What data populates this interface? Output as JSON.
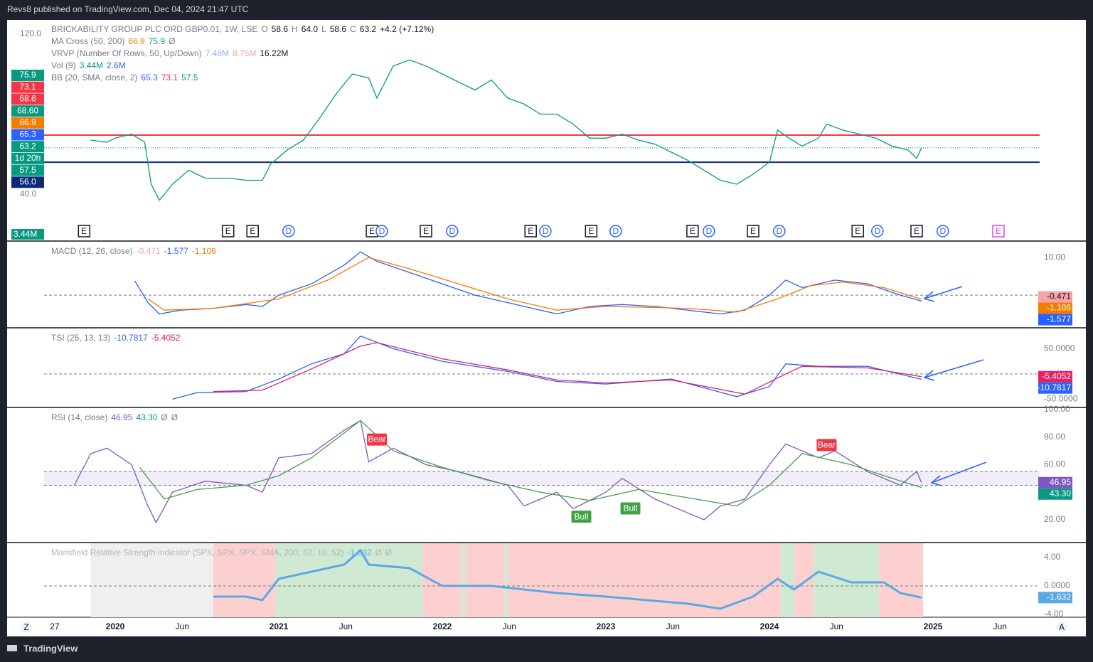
{
  "header": "Revs8 published on TradingView.com, Dec 04, 2024 21:47 UTC",
  "footer": "TradingView",
  "legends": [
    [
      {
        "text": "BRICKABILITY GROUP PLC ORD GBP0.01, 1W, LSE",
        "color": "#787b86"
      },
      {
        "text": "O",
        "color": "#787b86"
      },
      {
        "text": "58.6",
        "color": "#131722"
      },
      {
        "text": "H",
        "color": "#787b86"
      },
      {
        "text": "64.0",
        "color": "#131722"
      },
      {
        "text": "L",
        "color": "#787b86"
      },
      {
        "text": "58.6",
        "color": "#131722"
      },
      {
        "text": "C",
        "color": "#787b86"
      },
      {
        "text": "63.2",
        "color": "#131722"
      },
      {
        "text": "+4.2 (+7.12%)",
        "color": "#131722"
      }
    ],
    [
      {
        "text": "MA Cross (50, 200)",
        "color": "#787b86"
      },
      {
        "text": "66.9",
        "color": "#f57c00"
      },
      {
        "text": "75.9",
        "color": "#089981"
      },
      {
        "text": "Ø",
        "color": "#787b86"
      }
    ],
    [
      {
        "text": "VRVP (Number Of Rows, 50, Up/Down)",
        "color": "#787b86"
      },
      {
        "text": "7.48M",
        "color": "#90b4f5"
      },
      {
        "text": "8.75M",
        "color": "#f5a3a8"
      },
      {
        "text": "16.22M",
        "color": "#131722"
      }
    ],
    [
      {
        "text": "Vol (9)",
        "color": "#787b86"
      },
      {
        "text": "3.44M",
        "color": "#089981"
      },
      {
        "text": "2.6M",
        "color": "#2962ff"
      }
    ],
    [
      {
        "text": "BB (20, SMA, close, 2)",
        "color": "#787b86"
      },
      {
        "text": "65.3",
        "color": "#2962ff"
      },
      {
        "text": "73.1",
        "color": "#f23645"
      },
      {
        "text": "57.5",
        "color": "#089981"
      }
    ]
  ],
  "chart_data": [
    {
      "type": "line",
      "name": "price",
      "ylim": [
        17,
        127
      ],
      "yticks": [
        {
          "value": 120,
          "label": "120.0"
        },
        {
          "value": 40,
          "label": "40.0"
        }
      ],
      "x": [
        2019.85,
        2019.95,
        2020.0,
        2020.1,
        2020.18,
        2020.22,
        2020.27,
        2020.35,
        2020.45,
        2020.55,
        2020.7,
        2020.8,
        2020.9,
        2020.95,
        2021.05,
        2021.15,
        2021.25,
        2021.35,
        2021.45,
        2021.55,
        2021.6,
        2021.7,
        2021.8,
        2021.9,
        2022.0,
        2022.1,
        2022.2,
        2022.3,
        2022.4,
        2022.5,
        2022.6,
        2022.7,
        2022.8,
        2022.9,
        2023.0,
        2023.1,
        2023.2,
        2023.3,
        2023.4,
        2023.5,
        2023.6,
        2023.7,
        2023.8,
        2023.9,
        2024.0,
        2024.05,
        2024.12,
        2024.2,
        2024.3,
        2024.35,
        2024.45,
        2024.55,
        2024.65,
        2024.75,
        2024.85,
        2024.9,
        2024.93
      ],
      "series": [
        {
          "name": "close",
          "color": "#089981",
          "values": [
            67,
            66,
            68,
            70,
            66,
            45,
            37,
            45,
            52,
            48,
            48,
            47,
            47,
            55,
            62,
            67,
            78,
            90,
            100,
            98,
            88,
            104,
            107,
            104,
            100,
            96,
            92,
            97,
            88,
            85,
            80,
            80,
            75,
            68,
            68,
            70,
            67,
            65,
            61,
            57,
            52,
            47,
            45,
            50,
            56,
            72,
            68,
            64,
            68,
            75,
            72,
            70,
            68,
            64,
            62,
            58,
            63.2
          ]
        }
      ],
      "hlines": [
        {
          "value": 69.5,
          "color": "#f23645"
        },
        {
          "value": 56,
          "color": "#0d2a7a"
        }
      ],
      "price_labels": [
        {
          "value": 75.9,
          "color": "#089981"
        },
        {
          "value": 73.1,
          "color": "#f23645"
        },
        {
          "value": 68.6,
          "color": "#f23645"
        },
        {
          "value": 68.6,
          "label": "68.60",
          "color": "#089981"
        },
        {
          "value": 66.9,
          "color": "#f57c00"
        },
        {
          "value": 65.3,
          "color": "#2962ff"
        },
        {
          "value": 63.2,
          "color": "#089981"
        },
        {
          "value": null,
          "label": "1d 20h",
          "color": "#089981"
        },
        {
          "value": 57.5,
          "color": "#089981"
        },
        {
          "value": 56,
          "label": "56.0",
          "color": "#0d2a7a"
        }
      ],
      "volume_label": "3.44M",
      "events": [
        {
          "text": "E",
          "x": 2019.81
        },
        {
          "text": "E",
          "x": 2020.69
        },
        {
          "text": "E",
          "x": 2020.84
        },
        {
          "text": "D",
          "x": 2021.06
        },
        {
          "text": "E",
          "x": 2021.57
        },
        {
          "text": "D",
          "x": 2021.63
        },
        {
          "text": "E",
          "x": 2021.9
        },
        {
          "text": "D",
          "x": 2022.06
        },
        {
          "text": "E",
          "x": 2022.54
        },
        {
          "text": "D",
          "x": 2022.63
        },
        {
          "text": "E",
          "x": 2022.91
        },
        {
          "text": "D",
          "x": 2023.06
        },
        {
          "text": "E",
          "x": 2023.53
        },
        {
          "text": "D",
          "x": 2023.63
        },
        {
          "text": "E",
          "x": 2023.9
        },
        {
          "text": "D",
          "x": 2024.06
        },
        {
          "text": "E",
          "x": 2024.54
        },
        {
          "text": "D",
          "x": 2024.66
        },
        {
          "text": "E",
          "x": 2024.9
        },
        {
          "text": "D",
          "x": 2025.06
        },
        {
          "text": "E",
          "x": 2025.4,
          "color": "#e040fb"
        }
      ]
    },
    {
      "type": "line",
      "name": "macd",
      "title": [
        {
          "text": "MACD (12, 26, close)",
          "color": "#787b86"
        },
        {
          "text": "-0.471",
          "color": "#f5a3a8"
        },
        {
          "text": "-1.577",
          "color": "#2962ff"
        },
        {
          "text": "-1.106",
          "color": "#f57c00"
        }
      ],
      "ylim": [
        -8.5,
        14.2
      ],
      "yticks": [
        {
          "value": 10,
          "label": "10.00"
        }
      ],
      "zero": 0,
      "series": [
        {
          "name": "MACD",
          "color": "#2962ff",
          "x": [
            2020.12,
            2020.2,
            2020.27,
            2020.4,
            2020.6,
            2020.8,
            2020.9,
            2021.0,
            2021.2,
            2021.4,
            2021.5,
            2021.6,
            2021.8,
            2022.0,
            2022.2,
            2022.4,
            2022.6,
            2022.7,
            2022.9,
            2023.1,
            2023.3,
            2023.5,
            2023.7,
            2023.85,
            2024.0,
            2024.1,
            2024.2,
            2024.4,
            2024.6,
            2024.8,
            2024.93
          ],
          "values": [
            3.8,
            -2,
            -5,
            -4,
            -3.5,
            -2.5,
            -3,
            0,
            3,
            8,
            11.5,
            9,
            6,
            3,
            0,
            -2,
            -4,
            -5,
            -3,
            -2.5,
            -3,
            -4,
            -5,
            -4,
            0,
            4,
            2,
            4,
            3,
            0,
            -1.577
          ]
        },
        {
          "name": "Signal",
          "color": "#f57c00",
          "x": [
            2020.2,
            2020.3,
            2020.6,
            2021.0,
            2021.3,
            2021.55,
            2021.8,
            2022.1,
            2022.4,
            2022.7,
            2023.0,
            2023.5,
            2023.8,
            2024.05,
            2024.25,
            2024.45,
            2024.7,
            2024.93
          ],
          "values": [
            -1,
            -4,
            -3.5,
            -1,
            4,
            10,
            7,
            3,
            -1,
            -4,
            -3,
            -3.5,
            -4.5,
            -1,
            2.5,
            3.5,
            2,
            -1.106
          ]
        }
      ],
      "price_labels": [
        {
          "value": -0.471,
          "color": "#f5a3a8",
          "text_color": "#131722"
        },
        {
          "value": -1.106,
          "color": "#f57c00"
        },
        {
          "value": -1.577,
          "color": "#2962ff"
        }
      ]
    },
    {
      "type": "line",
      "name": "tsi",
      "title": [
        {
          "text": "TSI (25, 13, 13)",
          "color": "#787b86"
        },
        {
          "text": "-10.7817",
          "color": "#2962ff"
        },
        {
          "text": "-5.4052",
          "color": "#e91e63"
        }
      ],
      "ylim": [
        -65,
        90
      ],
      "yticks": [
        {
          "value": 50,
          "label": "50.0000"
        },
        {
          "value": -50,
          "label": "-50.0000"
        }
      ],
      "zero": 0,
      "series": [
        {
          "name": "TSI",
          "color": "#2962ff",
          "x": [
            2020.35,
            2020.5,
            2020.8,
            2021.0,
            2021.2,
            2021.4,
            2021.5,
            2021.7,
            2022.0,
            2022.4,
            2022.7,
            2023.0,
            2023.4,
            2023.8,
            2024.0,
            2024.1,
            2024.3,
            2024.6,
            2024.93
          ],
          "values": [
            -50,
            -37,
            -35,
            -10,
            20,
            40,
            75,
            50,
            25,
            5,
            -15,
            -20,
            -10,
            -45,
            -25,
            20,
            15,
            15,
            -10.7817
          ]
        },
        {
          "name": "Signal",
          "color": "#e91e63",
          "x": [
            2020.6,
            2020.9,
            2021.2,
            2021.5,
            2021.6,
            2022.0,
            2022.4,
            2022.7,
            2023.0,
            2023.4,
            2023.85,
            2024.1,
            2024.2,
            2024.6,
            2024.93
          ],
          "values": [
            -35,
            -32,
            10,
            55,
            62,
            30,
            8,
            -12,
            -18,
            -12,
            -40,
            0,
            15,
            12,
            -5.4052
          ]
        }
      ],
      "price_labels": [
        {
          "value": -5.4052,
          "color": "#e91e63"
        },
        {
          "value": -10.7817,
          "color": "#2962ff"
        }
      ]
    },
    {
      "type": "line",
      "name": "rsi",
      "title": [
        {
          "text": "RSI (14, close)",
          "color": "#787b86"
        },
        {
          "text": "46.95",
          "color": "#7e57c2"
        },
        {
          "text": "43.30",
          "color": "#089981"
        },
        {
          "text": "Ø",
          "color": "#787b86"
        },
        {
          "text": "Ø",
          "color": "#787b86"
        }
      ],
      "ylim": [
        4,
        101
      ],
      "yticks": [
        {
          "value": 100,
          "label": "100.00"
        },
        {
          "value": 80,
          "label": "80.00"
        },
        {
          "value": 60,
          "label": "60.00"
        },
        {
          "value": 20,
          "label": "20.00"
        }
      ],
      "band": [
        45,
        55
      ],
      "series": [
        {
          "name": "RSI",
          "color": "#7e57c2",
          "x": [
            2019.75,
            2019.85,
            2019.95,
            2020.1,
            2020.2,
            2020.25,
            2020.35,
            2020.55,
            2020.8,
            2020.9,
            2021.0,
            2021.2,
            2021.4,
            2021.5,
            2021.55,
            2021.7,
            2021.9,
            2022.1,
            2022.4,
            2022.5,
            2022.7,
            2022.8,
            2023.0,
            2023.1,
            2023.3,
            2023.5,
            2023.6,
            2023.7,
            2023.85,
            2024.0,
            2024.1,
            2024.3,
            2024.4,
            2024.6,
            2024.8,
            2024.9,
            2024.93
          ],
          "values": [
            45,
            68,
            72,
            60,
            30,
            18,
            40,
            48,
            45,
            40,
            65,
            68,
            85,
            92,
            62,
            72,
            60,
            55,
            45,
            30,
            40,
            28,
            40,
            50,
            35,
            25,
            20,
            30,
            35,
            60,
            75,
            65,
            70,
            55,
            45,
            55,
            46.95
          ]
        },
        {
          "name": "RSI MA",
          "color": "#43a047",
          "x": [
            2020.15,
            2020.3,
            2020.5,
            2020.8,
            2021.0,
            2021.2,
            2021.5,
            2021.7,
            2022.0,
            2022.3,
            2022.6,
            2022.9,
            2023.2,
            2023.5,
            2023.8,
            2024.0,
            2024.2,
            2024.5,
            2024.7,
            2024.93
          ],
          "values": [
            58,
            35,
            42,
            45,
            52,
            65,
            92,
            70,
            58,
            48,
            40,
            34,
            42,
            36,
            30,
            45,
            68,
            60,
            52,
            43.3
          ]
        }
      ],
      "annotations": [
        {
          "text": "Bear",
          "x": 2021.6,
          "y": 78,
          "color": "#f23645"
        },
        {
          "text": "Bear",
          "x": 2024.35,
          "y": 74,
          "color": "#f23645"
        },
        {
          "text": "Bull",
          "x": 2022.85,
          "y": 22,
          "color": "#43a047"
        },
        {
          "text": "Bull",
          "x": 2023.15,
          "y": 28,
          "color": "#43a047"
        }
      ],
      "price_labels": [
        {
          "value": 46.95,
          "color": "#7e57c2"
        },
        {
          "value": 43.3,
          "label": "43.30",
          "color": "#089981"
        }
      ]
    },
    {
      "type": "line",
      "name": "mansfield",
      "title": [
        {
          "text": "Mansfield Relative Strength indicator (SPX, SPX, SPX, SMA, 200, 52, 10, 52)",
          "color": "#b2b5be"
        },
        {
          "text": "-1.632",
          "color": "#5aa9e6"
        },
        {
          "text": "Ø",
          "color": "#b2b5be"
        },
        {
          "text": "Ø",
          "color": "#b2b5be"
        }
      ],
      "ylim": [
        -4.4,
        6
      ],
      "yticks": [
        {
          "value": 4,
          "label": "4.00"
        },
        {
          "value": 0,
          "label": "0.0000"
        },
        {
          "value": -4,
          "label": "-4.00"
        }
      ],
      "zero": 0,
      "regions": [
        {
          "from": 2019.85,
          "to": 2020.6,
          "color": "#efefef"
        },
        {
          "from": 2020.6,
          "to": 2020.98,
          "color": "#fdd0d0"
        },
        {
          "from": 2020.98,
          "to": 2021.88,
          "color": "#cfe9d2"
        },
        {
          "from": 2021.88,
          "to": 2022.12,
          "color": "#fdd0d0"
        },
        {
          "from": 2022.12,
          "to": 2022.14,
          "color": "#cfe9d2"
        },
        {
          "from": 2022.14,
          "to": 2022.38,
          "color": "#fdd0d0"
        },
        {
          "from": 2022.38,
          "to": 2022.4,
          "color": "#cfe9d2"
        },
        {
          "from": 2022.4,
          "to": 2024.07,
          "color": "#fdd0d0"
        },
        {
          "from": 2024.07,
          "to": 2024.15,
          "color": "#cfe9d2"
        },
        {
          "from": 2024.15,
          "to": 2024.27,
          "color": "#fdd0d0"
        },
        {
          "from": 2024.27,
          "to": 2024.67,
          "color": "#cfe9d2"
        },
        {
          "from": 2024.67,
          "to": 2024.94,
          "color": "#fdd0d0"
        }
      ],
      "series": [
        {
          "name": "RS",
          "color": "#5aa9e6",
          "x": [
            2020.6,
            2020.8,
            2020.9,
            2021.0,
            2021.2,
            2021.4,
            2021.5,
            2021.55,
            2021.8,
            2022.0,
            2022.3,
            2022.7,
            2023.0,
            2023.5,
            2023.7,
            2023.9,
            2024.05,
            2024.15,
            2024.3,
            2024.5,
            2024.7,
            2024.8,
            2024.93
          ],
          "values": [
            -1.5,
            -1.5,
            -2,
            1,
            2,
            3,
            5,
            3,
            2.5,
            0,
            0,
            -1,
            -1.5,
            -2.5,
            -3.2,
            -1.5,
            1,
            -0.5,
            2,
            0.5,
            0.5,
            -1,
            -1.632
          ]
        }
      ],
      "price_labels": [
        {
          "value": -1.632,
          "color": "#5aa9e6"
        }
      ]
    }
  ],
  "time_axis": [
    {
      "label": "27",
      "x": 2019.63
    },
    {
      "label": "2020",
      "x": 2020.0
    },
    {
      "label": "Jun",
      "x": 2020.41
    },
    {
      "label": "2021",
      "x": 2021.0
    },
    {
      "label": "Jun",
      "x": 2021.41
    },
    {
      "label": "2022",
      "x": 2022.0
    },
    {
      "label": "Jun",
      "x": 2022.41
    },
    {
      "label": "2023",
      "x": 2023.0
    },
    {
      "label": "Jun",
      "x": 2023.41
    },
    {
      "label": "2024",
      "x": 2024.0
    },
    {
      "label": "Jun",
      "x": 2024.41
    },
    {
      "label": "2025",
      "x": 2025.0
    },
    {
      "label": "Jun",
      "x": 2025.41
    }
  ],
  "buttons": [
    "Z",
    "A"
  ]
}
